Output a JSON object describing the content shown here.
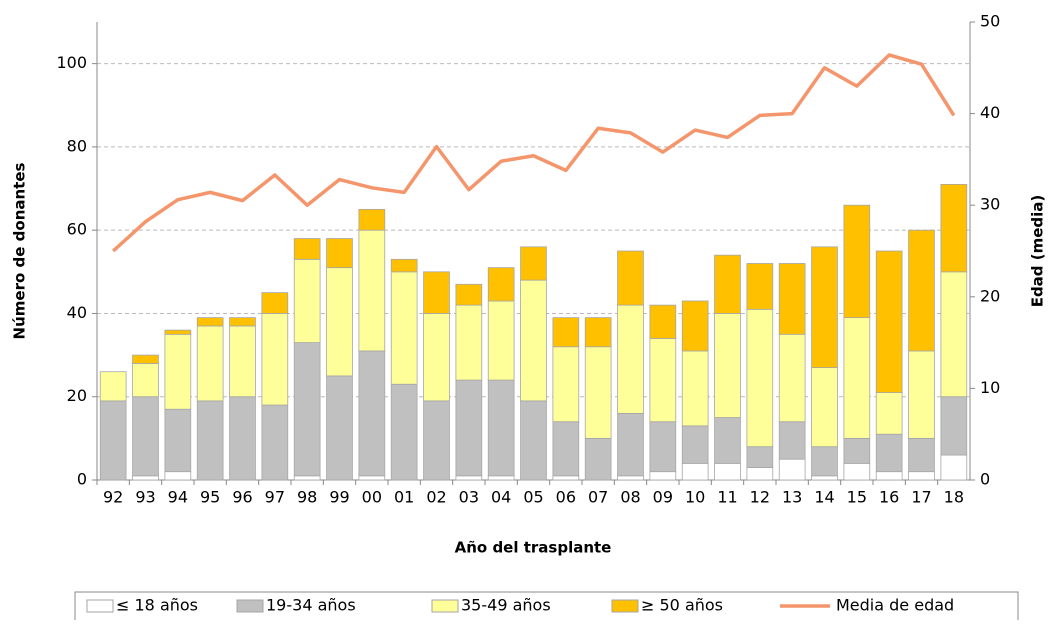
{
  "chart_data": {
    "type": "bar",
    "stacked": true,
    "x_label": "Año del trasplante",
    "y_label": "Número de donantes",
    "y2_label": "Edad (media)",
    "categories": [
      "92",
      "93",
      "94",
      "95",
      "96",
      "97",
      "98",
      "99",
      "00",
      "01",
      "02",
      "03",
      "04",
      "05",
      "06",
      "07",
      "08",
      "09",
      "10",
      "11",
      "12",
      "13",
      "14",
      "15",
      "16",
      "17",
      "18"
    ],
    "series": [
      {
        "name": "≤ 18 años",
        "type": "bar",
        "color": "#ffffff",
        "values": [
          0,
          1,
          2,
          0,
          0,
          0,
          1,
          0,
          1,
          0,
          0,
          1,
          1,
          0,
          1,
          0,
          1,
          2,
          4,
          4,
          3,
          5,
          1,
          4,
          2,
          2,
          6
        ]
      },
      {
        "name": "19-34 años",
        "type": "bar",
        "color": "#c0c0c0",
        "values": [
          19,
          19,
          15,
          19,
          20,
          18,
          32,
          25,
          30,
          23,
          19,
          23,
          23,
          19,
          13,
          10,
          15,
          12,
          9,
          11,
          5,
          9,
          7,
          6,
          9,
          8,
          14
        ]
      },
      {
        "name": "35-49 años",
        "type": "bar",
        "color": "#ffff99",
        "values": [
          7,
          8,
          18,
          18,
          17,
          22,
          20,
          26,
          29,
          27,
          21,
          18,
          19,
          29,
          18,
          22,
          26,
          20,
          18,
          25,
          33,
          21,
          19,
          29,
          10,
          21,
          30
        ]
      },
      {
        "name": "≥ 50 años",
        "type": "bar",
        "color": "#ffc000",
        "values": [
          0,
          2,
          1,
          2,
          2,
          5,
          5,
          7,
          5,
          3,
          10,
          5,
          8,
          8,
          7,
          7,
          13,
          8,
          12,
          14,
          11,
          17,
          29,
          27,
          34,
          29,
          21
        ]
      },
      {
        "name": "Media de edad",
        "type": "line",
        "axis": "y2",
        "color": "#f4956c",
        "values": [
          25.0,
          28.2,
          30.6,
          31.4,
          30.5,
          33.3,
          30.0,
          32.8,
          31.9,
          31.4,
          36.4,
          31.7,
          34.8,
          35.4,
          33.8,
          38.4,
          37.9,
          35.8,
          38.2,
          37.4,
          39.8,
          40.0,
          45.0,
          43.0,
          46.4,
          45.4,
          39.8
        ]
      }
    ],
    "ylim": [
      0,
      110
    ],
    "yticks": [
      0,
      20,
      40,
      60,
      80,
      100
    ],
    "y2lim": [
      0,
      50
    ],
    "y2ticks": [
      0,
      10,
      20,
      30,
      40,
      50
    ],
    "grid": true,
    "legend": "bottom"
  }
}
